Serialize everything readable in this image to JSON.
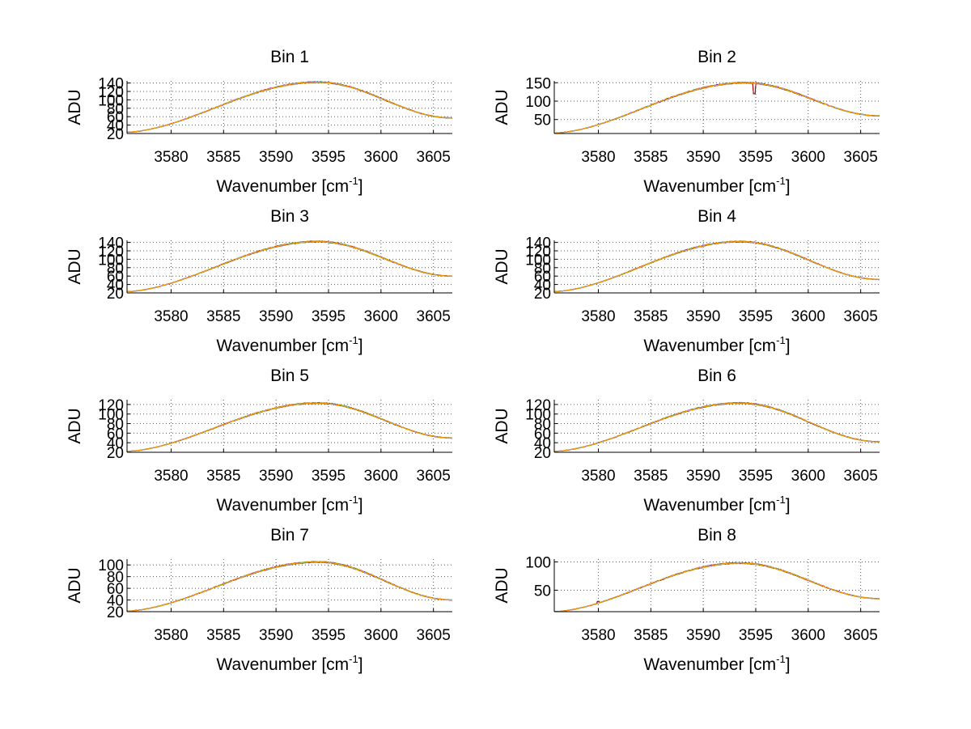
{
  "figure": {
    "background": "#ffffff",
    "axis_color": "#000000",
    "grid_color": "#555555",
    "series_colors": [
      "#0000cc",
      "#008800",
      "#cc0000",
      "#00aaaa",
      "#aa00aa",
      "#aaaa00",
      "#ff9900"
    ]
  },
  "chart_data": [
    {
      "type": "line",
      "title": "Bin 1",
      "xlabel": "Wavenumber [cm",
      "xlabel_sup": "-1",
      "xlabel_end": "]",
      "ylabel": "ADU",
      "xlim": [
        3575.8,
        3606.8
      ],
      "ylim": [
        20,
        145
      ],
      "xticks": [
        3580,
        3585,
        3590,
        3595,
        3600,
        3605
      ],
      "yticks": [
        20,
        40,
        60,
        80,
        100,
        120,
        140
      ],
      "grid": true,
      "curve": {
        "peak_x": 3594,
        "peak_y": 142,
        "start_y": 23,
        "end_y": 57,
        "noise": 2.0
      }
    },
    {
      "type": "line",
      "title": "Bin 2",
      "xlabel": "Wavenumber [cm",
      "xlabel_sup": "-1",
      "xlabel_end": "]",
      "ylabel": "ADU",
      "xlim": [
        3575.8,
        3606.8
      ],
      "ylim": [
        12,
        155
      ],
      "xticks": [
        3580,
        3585,
        3590,
        3595,
        3600,
        3605
      ],
      "yticks": [
        50,
        100,
        150
      ],
      "grid": true,
      "curve": {
        "peak_x": 3594,
        "peak_y": 150,
        "start_y": 13,
        "end_y": 60,
        "noise": 2.5,
        "dip_x": 3594.9,
        "dip_y": 120
      }
    },
    {
      "type": "line",
      "title": "Bin 3",
      "xlabel": "Wavenumber [cm",
      "xlabel_sup": "-1",
      "xlabel_end": "]",
      "ylabel": "ADU",
      "xlim": [
        3575.8,
        3606.8
      ],
      "ylim": [
        20,
        145
      ],
      "xticks": [
        3580,
        3585,
        3590,
        3595,
        3600,
        3605
      ],
      "yticks": [
        20,
        40,
        60,
        80,
        100,
        120,
        140
      ],
      "grid": true,
      "curve": {
        "peak_x": 3594,
        "peak_y": 142,
        "start_y": 23,
        "end_y": 60,
        "noise": 2.0
      }
    },
    {
      "type": "line",
      "title": "Bin 4",
      "xlabel": "Wavenumber [cm",
      "xlabel_sup": "-1",
      "xlabel_end": "]",
      "ylabel": "ADU",
      "xlim": [
        3575.8,
        3606.8
      ],
      "ylim": [
        20,
        145
      ],
      "xticks": [
        3580,
        3585,
        3590,
        3595,
        3600,
        3605
      ],
      "yticks": [
        20,
        40,
        60,
        80,
        100,
        120,
        140
      ],
      "grid": true,
      "curve": {
        "peak_x": 3593.5,
        "peak_y": 142,
        "start_y": 23,
        "end_y": 52,
        "noise": 2.0
      }
    },
    {
      "type": "line",
      "title": "Bin 5",
      "xlabel": "Wavenumber [cm",
      "xlabel_sup": "-1",
      "xlabel_end": "]",
      "ylabel": "ADU",
      "xlim": [
        3575.8,
        3606.8
      ],
      "ylim": [
        20,
        130
      ],
      "xticks": [
        3580,
        3585,
        3590,
        3595,
        3600,
        3605
      ],
      "yticks": [
        20,
        40,
        60,
        80,
        100,
        120
      ],
      "grid": true,
      "curve": {
        "peak_x": 3594,
        "peak_y": 123,
        "start_y": 22,
        "end_y": 50,
        "noise": 1.8
      }
    },
    {
      "type": "line",
      "title": "Bin 6",
      "xlabel": "Wavenumber [cm",
      "xlabel_sup": "-1",
      "xlabel_end": "]",
      "ylabel": "ADU",
      "xlim": [
        3575.8,
        3606.8
      ],
      "ylim": [
        20,
        130
      ],
      "xticks": [
        3580,
        3585,
        3590,
        3595,
        3600,
        3605
      ],
      "yticks": [
        20,
        40,
        60,
        80,
        100,
        120
      ],
      "grid": true,
      "curve": {
        "peak_x": 3593.5,
        "peak_y": 123,
        "start_y": 22,
        "end_y": 42,
        "noise": 1.8
      }
    },
    {
      "type": "line",
      "title": "Bin 7",
      "xlabel": "Wavenumber [cm",
      "xlabel_sup": "-1",
      "xlabel_end": "]",
      "ylabel": "ADU",
      "xlim": [
        3575.8,
        3606.8
      ],
      "ylim": [
        20,
        110
      ],
      "xticks": [
        3580,
        3585,
        3590,
        3595,
        3600,
        3605
      ],
      "yticks": [
        20,
        40,
        60,
        80,
        100
      ],
      "grid": true,
      "curve": {
        "peak_x": 3594,
        "peak_y": 105,
        "start_y": 21,
        "end_y": 40,
        "noise": 1.6
      }
    },
    {
      "type": "line",
      "title": "Bin 8",
      "xlabel": "Wavenumber [cm",
      "xlabel_sup": "-1",
      "xlabel_end": "]",
      "ylabel": "ADU",
      "xlim": [
        3575.8,
        3606.8
      ],
      "ylim": [
        12,
        105
      ],
      "xticks": [
        3580,
        3585,
        3590,
        3595,
        3600,
        3605
      ],
      "yticks": [
        50,
        100
      ],
      "grid": true,
      "curve": {
        "peak_x": 3593.5,
        "peak_y": 98,
        "start_y": 12,
        "end_y": 35,
        "noise": 1.6,
        "dip_x": 3580,
        "dip_y": 30
      }
    }
  ]
}
